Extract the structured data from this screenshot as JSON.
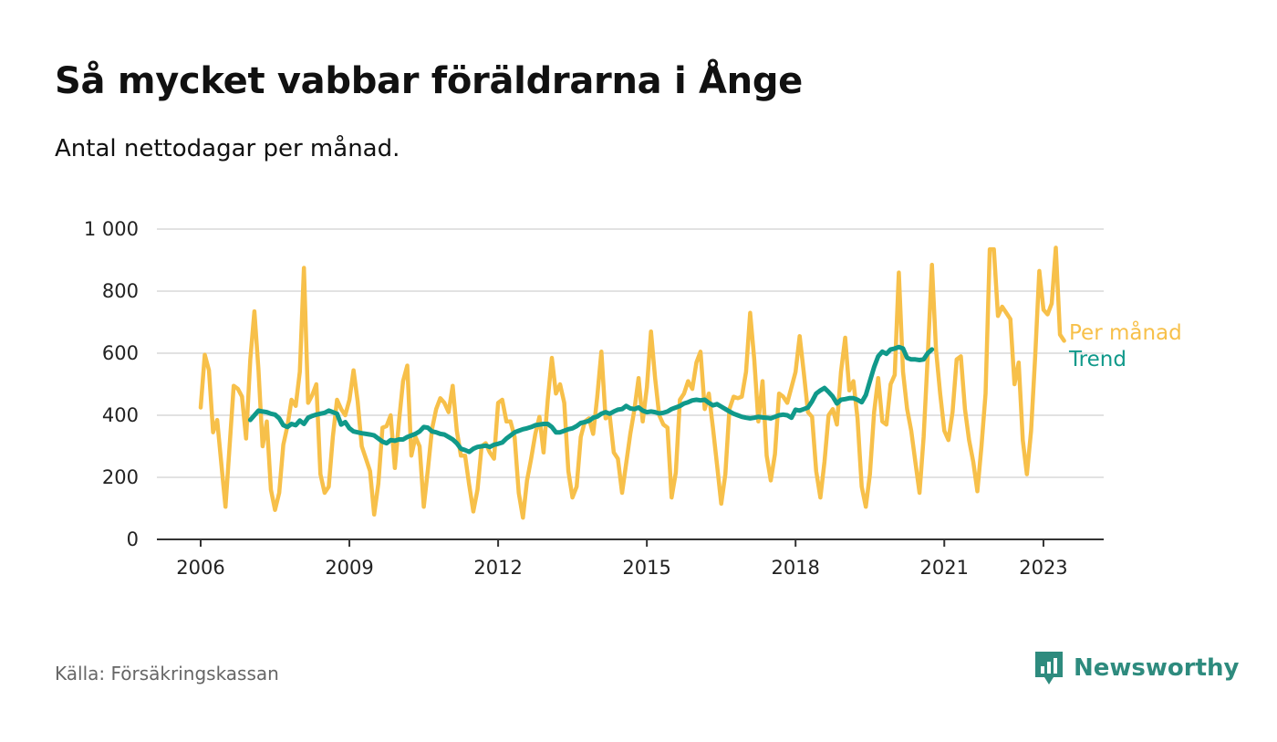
{
  "title": "Så mycket vabbar föräldrarna i Ånge",
  "subtitle": "Antal nettodagar per månad.",
  "source": "Källa: Försäkringskassan",
  "brand": {
    "name": "Newsworthy",
    "icon": "bar-chart-icon",
    "color": "#2e8b7e"
  },
  "chart_data": {
    "type": "line",
    "y_ticks": [
      "0",
      "200",
      "400",
      "600",
      "800",
      "1 000"
    ],
    "y_tick_values": [
      0,
      200,
      400,
      600,
      800,
      1000
    ],
    "x_ticks": [
      "2006",
      "2009",
      "2012",
      "2015",
      "2018",
      "2021",
      "2023"
    ],
    "x_tick_values": [
      2006,
      2009,
      2012,
      2015,
      2018,
      2021,
      2023
    ],
    "ylim": [
      0,
      1000
    ],
    "xlim": [
      2006,
      2023.5
    ],
    "grid": true,
    "legend_placement": "right-end-labels",
    "series": [
      {
        "name": "Per månad",
        "color": "#f7c04a",
        "x_start": 2006.0,
        "step_months": 1,
        "values": [
          425,
          595,
          545,
          345,
          385,
          245,
          105,
          300,
          495,
          485,
          460,
          325,
          580,
          735,
          545,
          300,
          380,
          160,
          95,
          150,
          305,
          365,
          450,
          430,
          540,
          875,
          440,
          465,
          500,
          210,
          150,
          170,
          330,
          450,
          420,
          400,
          450,
          545,
          445,
          300,
          260,
          220,
          80,
          180,
          360,
          365,
          400,
          230,
          380,
          510,
          560,
          270,
          330,
          300,
          105,
          225,
          355,
          420,
          455,
          440,
          410,
          495,
          350,
          270,
          270,
          175,
          90,
          160,
          300,
          310,
          280,
          260,
          440,
          450,
          380,
          380,
          330,
          150,
          70,
          190,
          260,
          340,
          395,
          280,
          450,
          585,
          470,
          500,
          440,
          220,
          135,
          170,
          330,
          380,
          390,
          340,
          460,
          605,
          390,
          400,
          280,
          260,
          150,
          245,
          340,
          420,
          520,
          380,
          490,
          670,
          520,
          400,
          370,
          360,
          135,
          215,
          450,
          470,
          510,
          485,
          570,
          605,
          420,
          470,
          360,
          240,
          115,
          210,
          420,
          460,
          455,
          460,
          540,
          730,
          580,
          380,
          510,
          270,
          190,
          275,
          470,
          460,
          440,
          490,
          540,
          655,
          535,
          410,
          395,
          220,
          135,
          250,
          400,
          420,
          370,
          540,
          650,
          480,
          510,
          390,
          170,
          105,
          210,
          410,
          520,
          380,
          370,
          500,
          530,
          860,
          540,
          420,
          350,
          250,
          150,
          330,
          590,
          885,
          610,
          470,
          350,
          320,
          410,
          580,
          590,
          420,
          320,
          250,
          155,
          300,
          470,
          935,
          935,
          720,
          750,
          730,
          710,
          500,
          570,
          320,
          210,
          350,
          590,
          865,
          740,
          725,
          760,
          940,
          660,
          640
        ]
      },
      {
        "name": "Trend",
        "color": "#10998a",
        "x_start": 2007.0,
        "step_months": 1,
        "values": [
          385,
          400,
          415,
          412,
          410,
          405,
          402,
          390,
          368,
          362,
          372,
          368,
          383,
          372,
          392,
          398,
          402,
          405,
          408,
          415,
          410,
          405,
          370,
          378,
          358,
          348,
          345,
          342,
          340,
          338,
          335,
          325,
          315,
          310,
          320,
          318,
          322,
          322,
          330,
          335,
          340,
          348,
          362,
          360,
          348,
          345,
          340,
          338,
          330,
          322,
          310,
          292,
          288,
          282,
          292,
          298,
          300,
          302,
          298,
          305,
          308,
          312,
          325,
          335,
          345,
          350,
          355,
          358,
          362,
          368,
          370,
          372,
          372,
          362,
          345,
          345,
          350,
          355,
          358,
          365,
          375,
          378,
          382,
          392,
          396,
          405,
          410,
          405,
          412,
          418,
          420,
          430,
          422,
          420,
          425,
          415,
          410,
          412,
          410,
          406,
          408,
          412,
          420,
          425,
          430,
          438,
          442,
          448,
          450,
          448,
          450,
          440,
          432,
          436,
          428,
          420,
          412,
          405,
          400,
          395,
          392,
          390,
          392,
          395,
          393,
          392,
          390,
          395,
          400,
          402,
          400,
          392,
          418,
          415,
          420,
          425,
          445,
          470,
          480,
          488,
          475,
          460,
          438,
          450,
          452,
          455,
          455,
          450,
          442,
          465,
          510,
          555,
          590,
          605,
          598,
          612,
          615,
          620,
          615,
          585,
          580,
          580,
          578,
          580,
          600,
          612
        ]
      }
    ]
  }
}
